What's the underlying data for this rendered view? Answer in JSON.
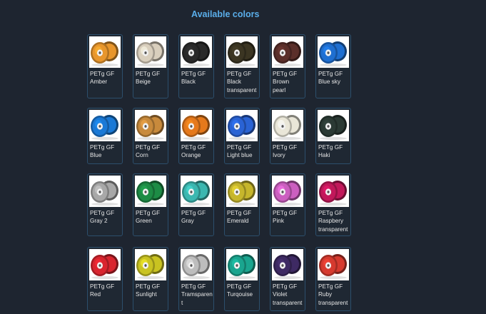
{
  "section": {
    "title": "Available colors"
  },
  "colors": [
    {
      "label": "PETg GF\nAmber",
      "icon": "filament-spool-icon",
      "hex": "#e8962c"
    },
    {
      "label": "PETg GF\nBeige",
      "icon": "filament-spool-icon",
      "hex": "#d9cfbd"
    },
    {
      "label": "PETg GF\nBlack",
      "icon": "filament-spool-icon",
      "hex": "#2a2a2a"
    },
    {
      "label": "PETg GF\nBlack\ntransparent",
      "icon": "filament-spool-icon",
      "hex": "#3b3522"
    },
    {
      "label": "PETg GF\nBrown\npearl",
      "icon": "filament-spool-icon",
      "hex": "#5b2f2a"
    },
    {
      "label": "PETg GF\nBlue sky",
      "icon": "filament-spool-icon",
      "hex": "#1f6fd1"
    },
    {
      "label": "PETg GF\nBlue",
      "icon": "filament-spool-icon",
      "hex": "#1a79d6"
    },
    {
      "label": "PETg GF\nCorn",
      "icon": "filament-spool-icon",
      "hex": "#c88a3c"
    },
    {
      "label": "PETg GF\nOrange",
      "icon": "filament-spool-icon",
      "hex": "#e5791c"
    },
    {
      "label": "PETg GF\nLight blue",
      "icon": "filament-spool-icon",
      "hex": "#2a63d4"
    },
    {
      "label": "PETg GF\nIvory",
      "icon": "filament-spool-icon",
      "hex": "#e9e6d8"
    },
    {
      "label": "PETg GF\nHaki",
      "icon": "filament-spool-icon",
      "hex": "#2b3a34"
    },
    {
      "label": "PETg GF\nGray 2",
      "icon": "filament-spool-icon",
      "hex": "#a8a8a8"
    },
    {
      "label": "PETg GF\nGreen",
      "icon": "filament-spool-icon",
      "hex": "#1d8c45"
    },
    {
      "label": "PETg GF\nGray",
      "icon": "filament-spool-icon",
      "hex": "#3bb7b0"
    },
    {
      "label": "PETg GF\nEmerald",
      "icon": "filament-spool-icon",
      "hex": "#c6b62c"
    },
    {
      "label": "PETg GF\nPink",
      "icon": "filament-spool-icon",
      "hex": "#cc5fc0"
    },
    {
      "label": "PETg GF\nRaspbery\ntransparent",
      "icon": "filament-spool-icon",
      "hex": "#c2185b"
    },
    {
      "label": "PETg GF\nRed",
      "icon": "filament-spool-icon",
      "hex": "#d9252f"
    },
    {
      "label": "PETg GF\nSunlight",
      "icon": "filament-spool-icon",
      "hex": "#c9c321"
    },
    {
      "label": "PETg GF\nTramsparen\nt",
      "icon": "filament-spool-icon",
      "hex": "#bdbdbd"
    },
    {
      "label": "PETg GF\nTurqouise",
      "icon": "filament-spool-icon",
      "hex": "#1aa58f"
    },
    {
      "label": "PETg GF\nViolet\ntransparent",
      "icon": "filament-spool-icon",
      "hex": "#3e2a63"
    },
    {
      "label": "PETg GF\nRuby\ntransparent",
      "icon": "filament-spool-icon",
      "hex": "#d63a2f"
    }
  ]
}
